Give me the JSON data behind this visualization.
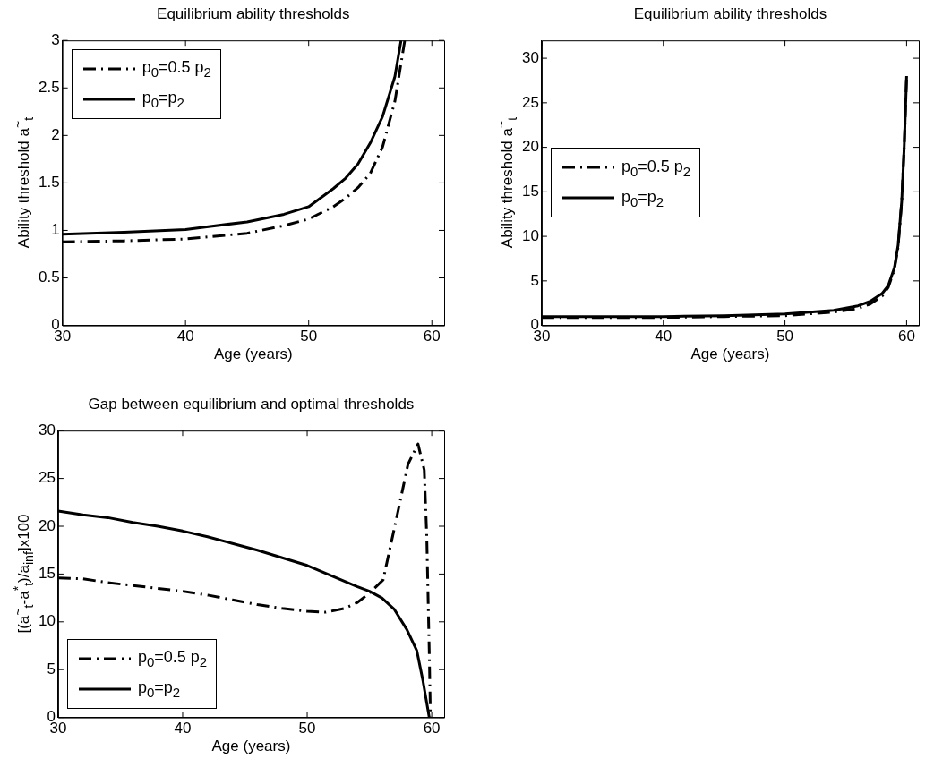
{
  "chart_data": [
    {
      "type": "line",
      "title": "Equilibrium ability thresholds",
      "xlabel": "Age (years)",
      "ylabel": "Ability threshold a$^{~}$$_{t}$",
      "xlim": [
        30,
        61
      ],
      "xticks": [
        30,
        40,
        50,
        60
      ],
      "ylim": [
        0,
        3
      ],
      "yticks": [
        0,
        0.5,
        1,
        1.5,
        2,
        2.5,
        3
      ],
      "legend": "top left",
      "series": [
        {
          "name": "p$_{0}$=0.5 p$_{2}$",
          "color": "#000000",
          "line_style": "dashed",
          "x": [
            30,
            35,
            40,
            45,
            48,
            50,
            52,
            53,
            54,
            55,
            56,
            57,
            57.4,
            57.8
          ],
          "values": [
            0.88,
            0.89,
            0.91,
            0.97,
            1.05,
            1.12,
            1.25,
            1.34,
            1.45,
            1.6,
            1.88,
            2.36,
            2.68,
            3.0
          ]
        },
        {
          "name": "p$_{0}$=p$_{2}$",
          "color": "#000000",
          "line_style": "solid",
          "x": [
            30,
            35,
            40,
            45,
            48,
            50,
            52,
            53,
            54,
            55,
            56,
            57,
            57.5
          ],
          "values": [
            0.96,
            0.98,
            1.01,
            1.09,
            1.17,
            1.25,
            1.44,
            1.55,
            1.7,
            1.92,
            2.2,
            2.62,
            3.0
          ]
        }
      ]
    },
    {
      "type": "line",
      "title": "Equilibrium ability thresholds",
      "xlabel": "Age (years)",
      "ylabel": "Ability threshold a$^{~}$$_{t}$",
      "xlim": [
        30,
        61
      ],
      "xticks": [
        30,
        40,
        50,
        60
      ],
      "ylim": [
        0,
        32
      ],
      "yticks": [
        0,
        5,
        10,
        15,
        20,
        25,
        30
      ],
      "legend": "left",
      "series": [
        {
          "name": "p$_{0}$=0.5 p$_{2}$",
          "color": "#000000",
          "line_style": "dashed",
          "x": [
            30,
            35,
            40,
            45,
            50,
            54,
            56,
            57,
            58,
            58.5,
            59,
            59.3,
            59.6,
            59.8,
            60
          ],
          "values": [
            0.9,
            0.9,
            0.9,
            1.0,
            1.1,
            1.5,
            1.9,
            2.4,
            3.3,
            4.3,
            6.3,
            8.8,
            14,
            20,
            28
          ]
        },
        {
          "name": "p$_{0}$=p$_{2}$",
          "color": "#000000",
          "line_style": "solid",
          "x": [
            30,
            35,
            40,
            45,
            50,
            54,
            56,
            57,
            58,
            58.5,
            59,
            59.3,
            59.6,
            59.8,
            60
          ],
          "values": [
            1.0,
            1.0,
            1.0,
            1.1,
            1.3,
            1.7,
            2.2,
            2.7,
            3.6,
            4.5,
            6.5,
            9,
            14,
            20,
            28
          ]
        }
      ]
    },
    {
      "type": "line",
      "title": "Gap between equilibrium and optimal thresholds",
      "xlabel": "Age (years)",
      "ylabel": "[(a$^{~}$$_{t}$-a$^{*}$$_{t}$)/a$_{inf}$]x100",
      "xlim": [
        30,
        61
      ],
      "xticks": [
        30,
        40,
        50,
        60
      ],
      "ylim": [
        0,
        30
      ],
      "yticks": [
        0,
        5,
        10,
        15,
        20,
        25,
        30
      ],
      "legend": "bottom left",
      "series": [
        {
          "name": "p$_{0}$=0.5 p$_{2}$",
          "color": "#000000",
          "line_style": "dashed",
          "x": [
            30,
            32,
            34,
            36,
            38,
            40,
            42,
            44,
            46,
            48,
            50,
            51.5,
            53,
            54,
            55,
            56.1,
            57.1,
            58.1,
            58.9,
            59.4,
            59.6,
            59.8,
            59.9
          ],
          "values": [
            14.6,
            14.5,
            14.1,
            13.8,
            13.5,
            13.2,
            12.8,
            12.3,
            11.8,
            11.4,
            11.1,
            11.0,
            11.4,
            12.0,
            13.0,
            14.4,
            20.4,
            26.5,
            28.6,
            25.9,
            19,
            7,
            0
          ]
        },
        {
          "name": "p$_{0}$=p$_{2}$",
          "color": "#000000",
          "line_style": "solid",
          "x": [
            30,
            32,
            34,
            36,
            38,
            40,
            42,
            44,
            46,
            48,
            50,
            52,
            54,
            55,
            56,
            57,
            58,
            58.8,
            59.3,
            59.8
          ],
          "values": [
            21.6,
            21.2,
            20.9,
            20.4,
            20,
            19.5,
            18.9,
            18.2,
            17.5,
            16.7,
            15.9,
            14.8,
            13.7,
            13.2,
            12.5,
            11.3,
            9.2,
            7,
            3.8,
            0
          ]
        }
      ]
    }
  ]
}
